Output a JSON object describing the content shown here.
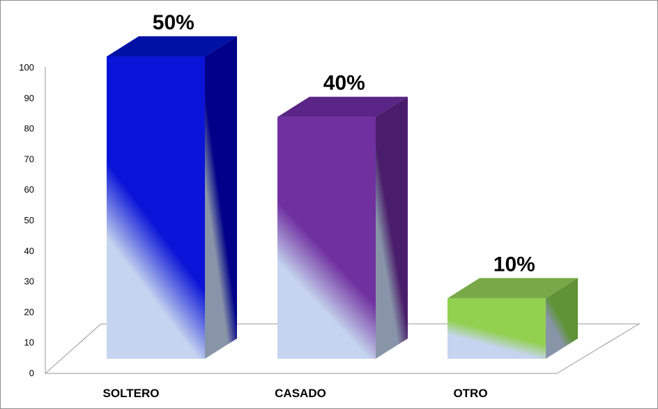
{
  "chart_data": {
    "type": "bar",
    "style": "3d-column",
    "categories": [
      "SOLTERO",
      "CASADO",
      "OTRO"
    ],
    "values": [
      100,
      80,
      20
    ],
    "data_labels": [
      "50%",
      "40%",
      "10%"
    ],
    "ylim": [
      0,
      100
    ],
    "yticks": [
      0,
      10,
      20,
      30,
      40,
      50,
      60,
      70,
      80,
      90,
      100
    ],
    "grid": false,
    "legend": "none",
    "colors": {
      "SOLTERO": {
        "front": "#0a14d8",
        "side": "#00008a",
        "top": "#0012a6",
        "highlight": "#c6d5ef",
        "side_highlight": "#8895a8"
      },
      "CASADO": {
        "front": "#7030a0",
        "side": "#4a1d6c",
        "top": "#5a2586",
        "highlight": "#c6d5ef",
        "side_highlight": "#8895a8"
      },
      "OTRO": {
        "front": "#92d050",
        "side": "#5f9336",
        "top": "#78a848",
        "highlight": "#c6d5ef",
        "side_highlight": "#8895a8"
      }
    }
  }
}
